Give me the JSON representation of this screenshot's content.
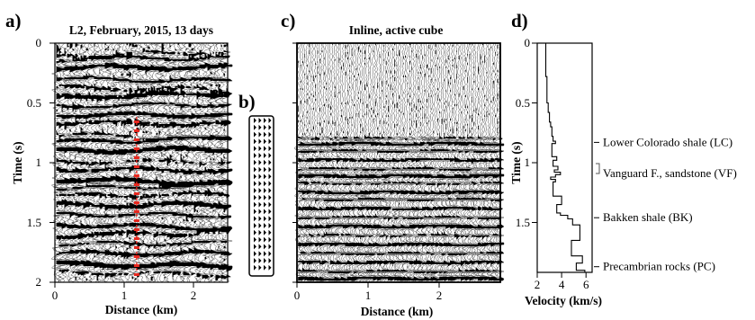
{
  "panels": {
    "a": {
      "label": "a)",
      "title": "L2, February, 2015, 13 days",
      "xlabel": "Distance (km)",
      "ylabel": "Time (s)",
      "xticks": [
        "0",
        "1",
        "2"
      ],
      "yticks": [
        "0",
        "0.5",
        "1",
        "1.5",
        "2"
      ],
      "marker": "PC"
    },
    "b": {
      "label": "b)"
    },
    "c": {
      "label": "c)",
      "title": "Inline, active cube",
      "xlabel": "Distance (km)",
      "xticks": [
        "0",
        "1",
        "2"
      ],
      "yticks": [
        "0",
        "0.5",
        "1",
        "1.5",
        "2"
      ]
    },
    "d": {
      "label": "d)",
      "xlabel": "Velocity (km/s)",
      "ylabel": "Time (s)",
      "xticks": [
        "2",
        "4",
        "6"
      ],
      "yticks": [
        "0",
        "0.5",
        "1",
        "1.5"
      ],
      "annotations": [
        {
          "text": "Lower Colorado shale (LC)",
          "time": 0.83
        },
        {
          "text": "Vanguard F., sandstone (VF)",
          "time": 1.09
        },
        {
          "text": "Bakken shale (BK)",
          "time": 1.46
        },
        {
          "text": "Precambrian rocks (PC)",
          "time": 1.87
        }
      ]
    }
  },
  "colors": {
    "ink": "#000000",
    "pick": "#e8271e",
    "bracket": "#555555"
  },
  "chart_data": {
    "type": "line",
    "xlabel": "Velocity (km/s)",
    "ylabel": "Time (s)",
    "xlim": [
      2,
      6.5
    ],
    "ylim": [
      2,
      0
    ],
    "series": [
      {
        "x": [
          2.7,
          2.7,
          2.8,
          2.8,
          2.9,
          2.9,
          3.0,
          3.0,
          3.1,
          3.1,
          3.2,
          3.2,
          3.3,
          3.3,
          3.5,
          3.5,
          3.2,
          3.2,
          3.6,
          3.6,
          3.3,
          3.3,
          3.7,
          3.7,
          3.4,
          3.4,
          3.9,
          3.9,
          3.5,
          3.5,
          3.1,
          3.1,
          3.5,
          3.5,
          3.3,
          3.3,
          4.0,
          4.0,
          3.6,
          3.6,
          3.9,
          3.9,
          4.5,
          4.5,
          4.9,
          4.9,
          5.5,
          5.5,
          4.8,
          4.8,
          5.7,
          5.7,
          5.2,
          5.2,
          5.9,
          5.9
        ],
        "y": [
          0,
          0.28,
          0.28,
          0.5,
          0.5,
          0.58,
          0.58,
          0.66,
          0.66,
          0.7,
          0.7,
          0.78,
          0.78,
          0.82,
          0.82,
          0.84,
          0.84,
          0.95,
          0.95,
          0.98,
          0.98,
          1.03,
          1.03,
          1.06,
          1.06,
          1.08,
          1.08,
          1.1,
          1.1,
          1.12,
          1.12,
          1.14,
          1.14,
          1.16,
          1.16,
          1.28,
          1.28,
          1.35,
          1.35,
          1.42,
          1.42,
          1.44,
          1.44,
          1.47,
          1.47,
          1.52,
          1.52,
          1.65,
          1.65,
          1.78,
          1.78,
          1.84,
          1.84,
          1.9,
          1.9,
          1.92
        ]
      }
    ]
  }
}
